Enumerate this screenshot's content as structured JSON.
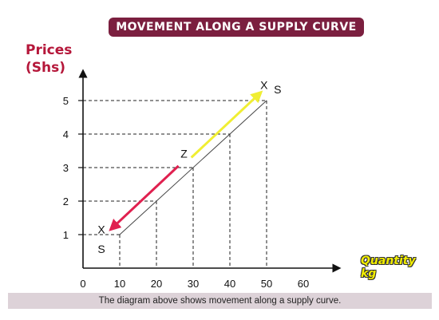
{
  "banner": {
    "title": "MOVEMENT ALONG A SUPPLY CURVE"
  },
  "caption": "The diagram above shows movement along a supply curve.",
  "colors": {
    "banner": "#7b1f3f",
    "ylabel": "#b5173a",
    "up_arrow": "#f0ee33",
    "down_arrow": "#e0204f",
    "curve": "#444444"
  },
  "chart_data": {
    "type": "line",
    "title": "MOVEMENT ALONG A SUPPLY CURVE",
    "ylabel_lines": [
      "Prices",
      "(Shs)"
    ],
    "xlabel": "Quantity kg",
    "x_ticks": [
      0,
      10,
      20,
      30,
      40,
      50,
      60
    ],
    "y_ticks": [
      1,
      2,
      3,
      4,
      5
    ],
    "xlim": [
      0,
      70
    ],
    "ylim": [
      0,
      6
    ],
    "grid": false,
    "series": [
      {
        "points": [
          [
            10,
            1
          ],
          [
            20,
            2
          ],
          [
            30,
            3
          ],
          [
            40,
            4
          ],
          [
            50,
            5
          ]
        ]
      }
    ],
    "guides": [
      [
        10,
        1
      ],
      [
        20,
        2
      ],
      [
        30,
        3
      ],
      [
        40,
        4
      ],
      [
        50,
        5
      ]
    ],
    "annotations": [
      {
        "text": "X",
        "x": 5,
        "y": 1.03
      },
      {
        "text": "S",
        "x": 5,
        "y": 0.45
      },
      {
        "text": "Z",
        "x": 27.5,
        "y": 3.3
      },
      {
        "text": "X",
        "x": 49.3,
        "y": 5.35
      },
      {
        "text": "S",
        "x": 53,
        "y": 5.22
      }
    ],
    "movement_arrows": [
      {
        "direction": "up",
        "from": [
          29.5,
          3.3
        ],
        "to": [
          48.5,
          5.25
        ]
      },
      {
        "direction": "down",
        "from": [
          26,
          3.05
        ],
        "to": [
          7.5,
          1.15
        ]
      }
    ]
  }
}
